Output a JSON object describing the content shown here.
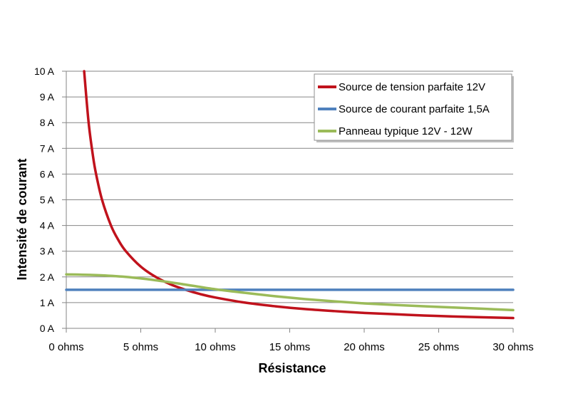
{
  "chart_data": {
    "type": "line",
    "title": "",
    "xlabel": "Résistance",
    "ylabel": "Intensité de courant",
    "xlim": [
      0,
      30
    ],
    "ylim": [
      0,
      10
    ],
    "x_ticks": [
      0,
      5,
      10,
      15,
      20,
      25,
      30
    ],
    "x_tick_labels": [
      "0 ohms",
      "5 ohms",
      "10 ohms",
      "15 ohms",
      "20 ohms",
      "25 ohms",
      "30 ohms"
    ],
    "y_ticks": [
      0,
      1,
      2,
      3,
      4,
      5,
      6,
      7,
      8,
      9,
      10
    ],
    "y_tick_labels": [
      "0 A",
      "1 A",
      "2 A",
      "3 A",
      "4 A",
      "5 A",
      "6 A",
      "7 A",
      "8 A",
      "9 A",
      "10 A"
    ],
    "grid": "horizontal",
    "legend_position": "top-right",
    "series": [
      {
        "name": "Source de tension parfaite 12V",
        "color": "#c0121c",
        "points": [
          [
            1.2,
            10
          ],
          [
            1.5,
            8
          ],
          [
            1.8,
            6.67
          ],
          [
            2,
            6
          ],
          [
            2.4,
            5
          ],
          [
            3,
            4
          ],
          [
            3.5,
            3.43
          ],
          [
            4,
            3
          ],
          [
            5,
            2.4
          ],
          [
            6,
            2
          ],
          [
            7,
            1.71
          ],
          [
            8,
            1.5
          ],
          [
            9,
            1.33
          ],
          [
            10,
            1.2
          ],
          [
            12,
            1
          ],
          [
            14,
            0.86
          ],
          [
            16,
            0.75
          ],
          [
            18,
            0.67
          ],
          [
            20,
            0.6
          ],
          [
            22,
            0.55
          ],
          [
            24,
            0.5
          ],
          [
            26,
            0.46
          ],
          [
            28,
            0.43
          ],
          [
            30,
            0.4
          ]
        ]
      },
      {
        "name": "Source de courant parfaite 1,5A",
        "color": "#4f81bd",
        "points": [
          [
            0,
            1.5
          ],
          [
            30,
            1.5
          ]
        ]
      },
      {
        "name": "Panneau typique 12V - 12W",
        "color": "#9bbb59",
        "points": [
          [
            0,
            2.1
          ],
          [
            2,
            2.07
          ],
          [
            4,
            2.0
          ],
          [
            6,
            1.87
          ],
          [
            8,
            1.7
          ],
          [
            10,
            1.52
          ],
          [
            12,
            1.38
          ],
          [
            14,
            1.25
          ],
          [
            16,
            1.14
          ],
          [
            18,
            1.05
          ],
          [
            20,
            0.97
          ],
          [
            22,
            0.91
          ],
          [
            24,
            0.86
          ],
          [
            26,
            0.81
          ],
          [
            28,
            0.76
          ],
          [
            30,
            0.71
          ]
        ]
      }
    ]
  }
}
